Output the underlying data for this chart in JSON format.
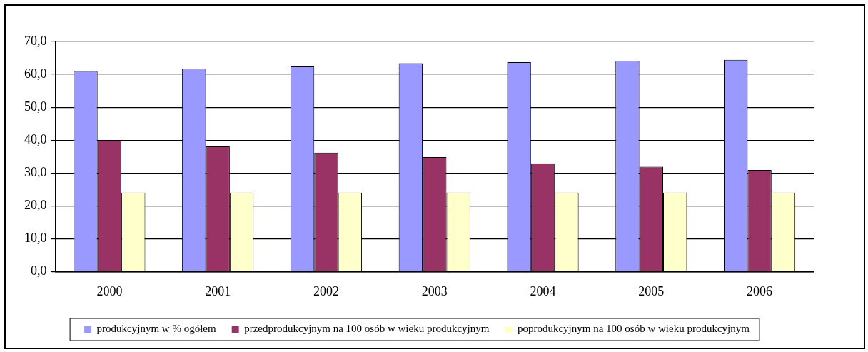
{
  "chart_data": {
    "type": "bar",
    "categories": [
      "2000",
      "2001",
      "2002",
      "2003",
      "2004",
      "2005",
      "2006"
    ],
    "series": [
      {
        "name": "produkcyjnym w % ogółem",
        "color": "#9999ff",
        "values": [
          61.0,
          61.7,
          62.4,
          63.4,
          63.7,
          64.1,
          64.4
        ]
      },
      {
        "name": "przedprodukcyjnym na 100 osób w wieku produkcyjnym",
        "color": "#993366",
        "values": [
          40.0,
          38.1,
          36.2,
          34.8,
          32.9,
          31.9,
          30.9
        ]
      },
      {
        "name": "poprodukcyjnym na 100 osób w wieku produkcyjnym",
        "color": "#ffffcc",
        "values": [
          24.0,
          24.0,
          24.0,
          24.0,
          24.0,
          24.0,
          24.0
        ]
      }
    ],
    "ylim": [
      0,
      70
    ],
    "yticks": [
      {
        "value": 0,
        "label": "0,0"
      },
      {
        "value": 10,
        "label": "10,0"
      },
      {
        "value": 20,
        "label": "20,0"
      },
      {
        "value": 30,
        "label": "30,0"
      },
      {
        "value": 40,
        "label": "40,0"
      },
      {
        "value": 50,
        "label": "50,0"
      },
      {
        "value": 60,
        "label": "60,0"
      },
      {
        "value": 70,
        "label": "70,0"
      }
    ],
    "grid": "y",
    "legend": "bottom"
  }
}
